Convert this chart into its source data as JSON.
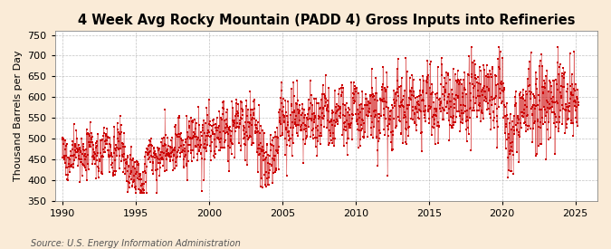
{
  "title": "4 Week Avg Rocky Mountain (PADD 4) Gross Inputs into Refineries",
  "ylabel": "Thousand Barrels per Day",
  "source": "Source: U.S. Energy Information Administration",
  "xlim": [
    1989.5,
    2026.5
  ],
  "ylim": [
    350,
    760
  ],
  "yticks": [
    350,
    400,
    450,
    500,
    550,
    600,
    650,
    700,
    750
  ],
  "xticks": [
    1990,
    1995,
    2000,
    2005,
    2010,
    2015,
    2020,
    2025
  ],
  "marker_color": "#cc0000",
  "background_color": "#faebd7",
  "plot_bg_color": "#ffffff",
  "grid_color": "#999999",
  "title_fontsize": 10.5,
  "label_fontsize": 8,
  "tick_fontsize": 8,
  "source_fontsize": 7
}
